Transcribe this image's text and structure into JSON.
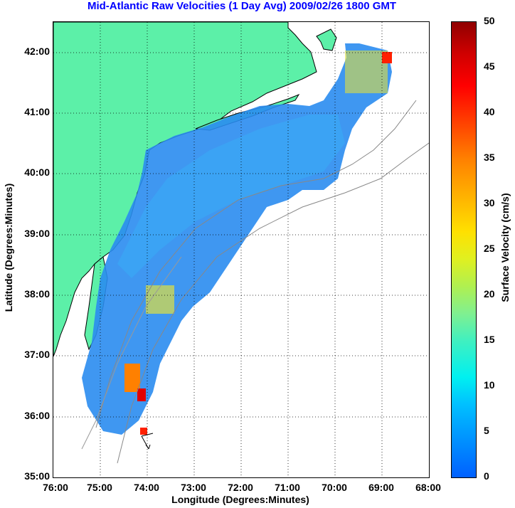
{
  "title": "Mid-Atlantic Raw Velocities (1 Day Avg) 2009/02/26 1800 GMT",
  "xlabel": "Longitude (Degrees:Minutes)",
  "ylabel": "Latitude (Degrees:Minutes)",
  "colorbar_label": "Surface Velocity (cm/s)",
  "lat_ticks": [
    "42:00",
    "41:00",
    "40:00",
    "39:00",
    "38:00",
    "37:00",
    "36:00",
    "35:00"
  ],
  "lon_ticks": [
    "76:00",
    "75:00",
    "74:00",
    "73:00",
    "72:00",
    "71:00",
    "70:00",
    "69:00",
    "68:00"
  ],
  "cbar_ticks": [
    "50",
    "45",
    "40",
    "35",
    "30",
    "25",
    "20",
    "15",
    "10",
    "5",
    "0"
  ],
  "colors": {
    "land": "#5cf0a8",
    "ocean_field": "#2a8cf0",
    "title": "#0000ff"
  }
}
